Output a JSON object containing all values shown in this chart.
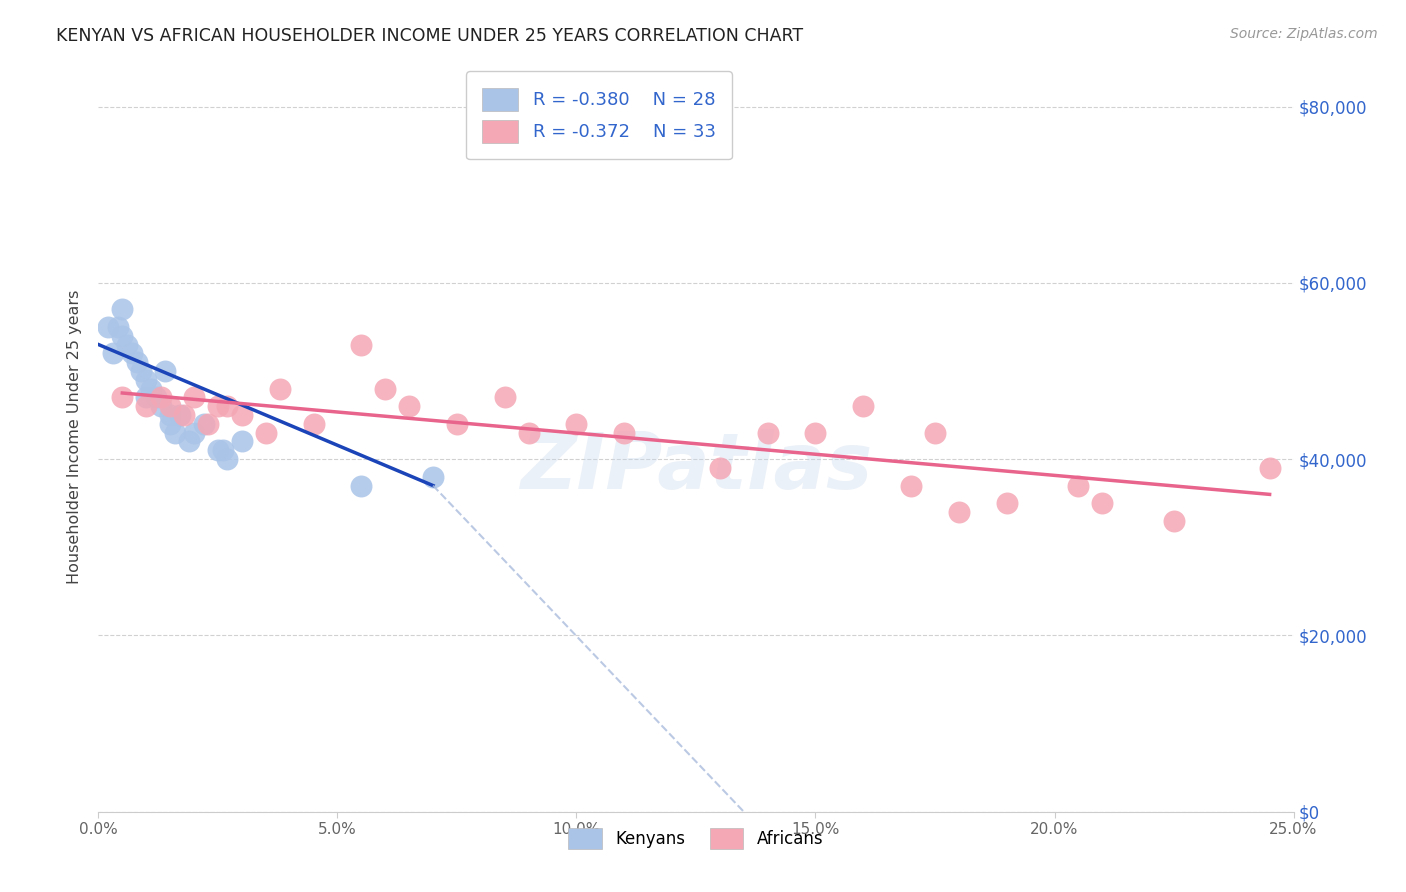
{
  "title": "KENYAN VS AFRICAN HOUSEHOLDER INCOME UNDER 25 YEARS CORRELATION CHART",
  "source": "Source: ZipAtlas.com",
  "ylabel": "Householder Income Under 25 years",
  "xlabel_vals": [
    0.0,
    5.0,
    10.0,
    15.0,
    20.0,
    25.0
  ],
  "ylabel_vals": [
    0,
    20000,
    40000,
    60000,
    80000
  ],
  "xlim": [
    0.0,
    25.0
  ],
  "ylim": [
    0,
    85000
  ],
  "legend_r_kenyan": "-0.380",
  "legend_n_kenyan": "28",
  "legend_r_african": "-0.372",
  "legend_n_african": "33",
  "kenyan_color": "#aac4e8",
  "african_color": "#f4a7b5",
  "kenyan_line_color": "#1a44b8",
  "african_line_color": "#e8648c",
  "dashed_color": "#aabcdd",
  "kenyan_x": [
    0.2,
    0.3,
    0.4,
    0.5,
    0.5,
    0.6,
    0.7,
    0.8,
    0.9,
    1.0,
    1.0,
    1.1,
    1.2,
    1.3,
    1.4,
    1.5,
    1.5,
    1.6,
    1.7,
    1.9,
    2.0,
    2.2,
    2.5,
    2.6,
    2.7,
    3.0,
    5.5,
    7.0
  ],
  "kenyan_y": [
    55000,
    52000,
    55000,
    57000,
    54000,
    53000,
    52000,
    51000,
    50000,
    49000,
    47000,
    48000,
    47000,
    46000,
    50000,
    45000,
    44000,
    43000,
    45000,
    42000,
    43000,
    44000,
    41000,
    41000,
    40000,
    42000,
    37000,
    38000
  ],
  "african_x": [
    0.5,
    1.0,
    1.3,
    1.5,
    1.8,
    2.0,
    2.3,
    2.5,
    2.7,
    3.0,
    3.5,
    3.8,
    4.5,
    5.5,
    6.0,
    6.5,
    7.5,
    8.5,
    9.0,
    10.0,
    11.0,
    13.0,
    14.0,
    15.0,
    16.0,
    17.0,
    17.5,
    18.0,
    19.0,
    20.5,
    21.0,
    22.5,
    24.5
  ],
  "african_y": [
    47000,
    46000,
    47000,
    46000,
    45000,
    47000,
    44000,
    46000,
    46000,
    45000,
    43000,
    48000,
    44000,
    53000,
    48000,
    46000,
    44000,
    47000,
    43000,
    44000,
    43000,
    39000,
    43000,
    43000,
    46000,
    37000,
    43000,
    34000,
    35000,
    37000,
    35000,
    33000,
    39000
  ],
  "kenyan_line_x0": 0.0,
  "kenyan_line_y0": 53000,
  "kenyan_line_x1": 7.0,
  "kenyan_line_y1": 37000,
  "african_line_x0": 0.5,
  "african_line_y0": 47500,
  "african_line_x1": 24.5,
  "african_line_y1": 36000,
  "dashed_line_x0": 7.0,
  "dashed_line_y0": 37000,
  "dashed_line_x1": 13.5,
  "dashed_line_y1": 0,
  "watermark": "ZIPatlas",
  "background_color": "#ffffff",
  "grid_color": "#cccccc"
}
